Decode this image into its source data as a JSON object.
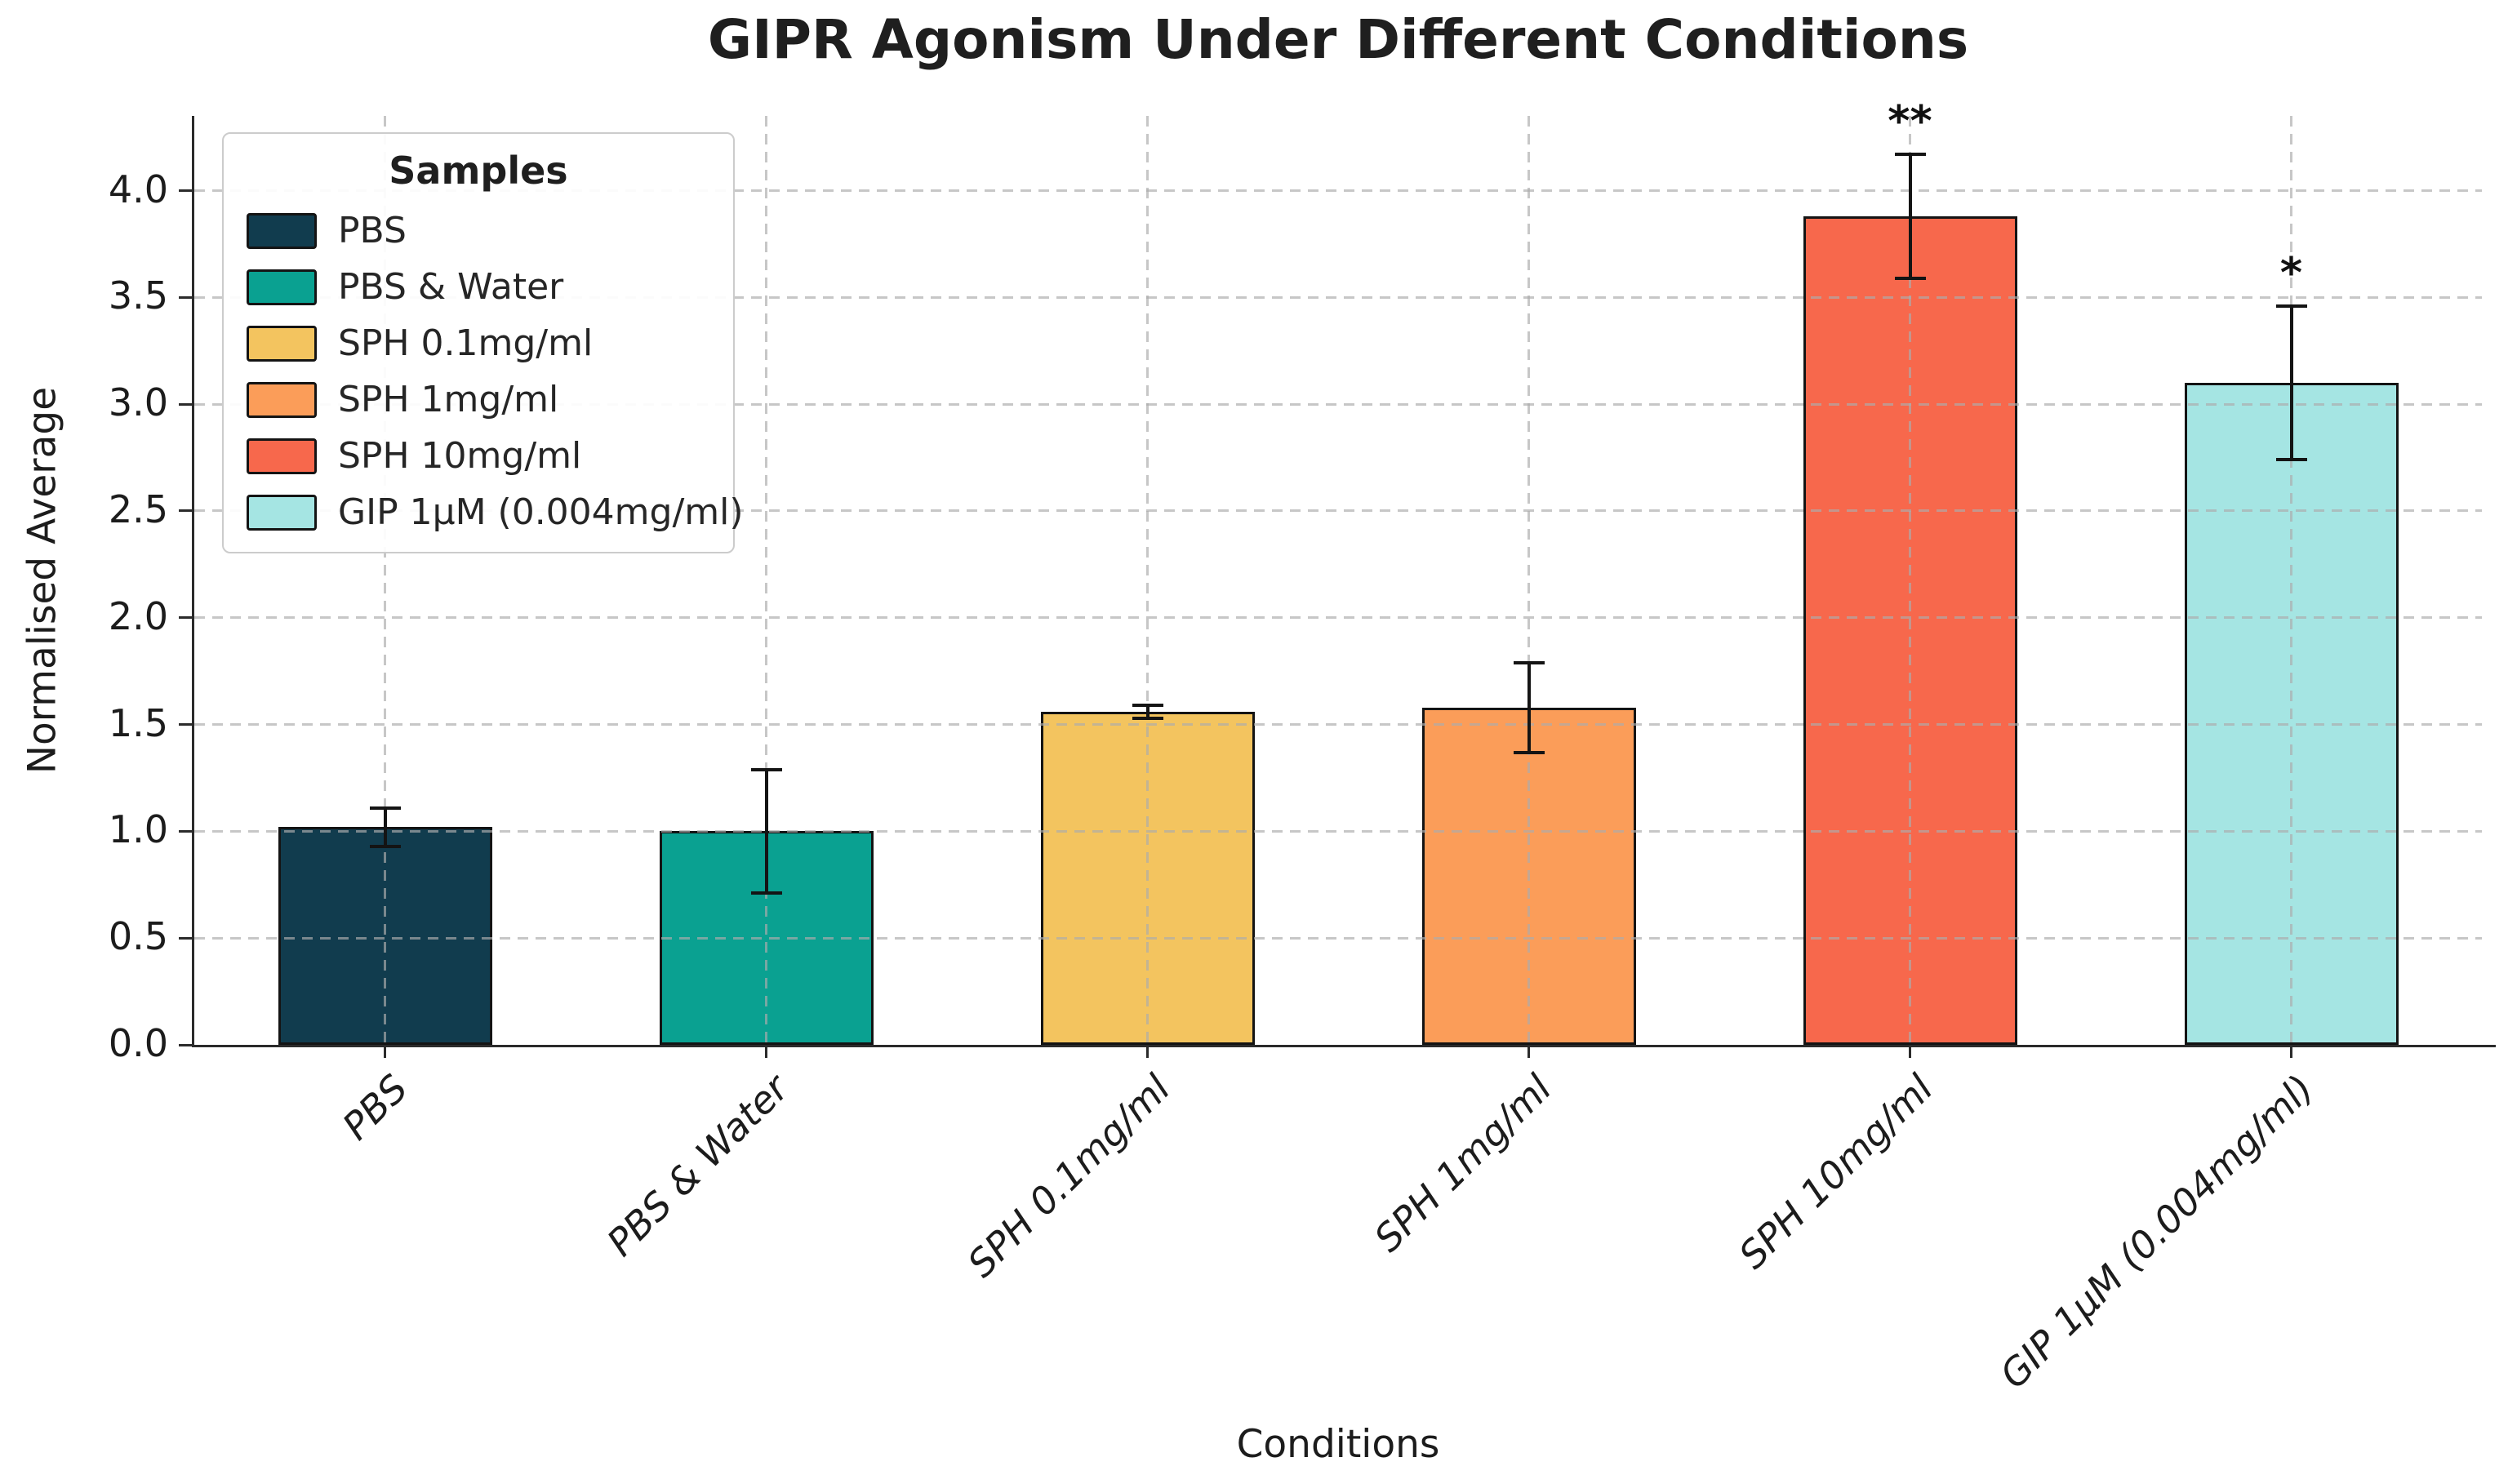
{
  "chart_data": {
    "type": "bar",
    "title": "GIPR Agonism Under Different Conditions",
    "xlabel": "Conditions",
    "ylabel": "Normalised Average",
    "ylim": [
      0,
      4.35
    ],
    "yticks": [
      0.0,
      0.5,
      1.0,
      1.5,
      2.0,
      2.5,
      3.0,
      3.5,
      4.0
    ],
    "grid": "dashed, both axes, drawn over bars",
    "categories": [
      "PBS",
      "PBS & Water",
      "SPH 0.1mg/ml",
      "SPH 1mg/ml",
      "SPH 10mg/ml",
      "GIP 1μM (0.004mg/ml)"
    ],
    "values": [
      1.02,
      1.0,
      1.56,
      1.58,
      3.88,
      3.1
    ],
    "errors": [
      0.09,
      0.29,
      0.03,
      0.21,
      0.29,
      0.36
    ],
    "annotations": [
      "",
      "",
      "",
      "",
      "**",
      "*"
    ],
    "colors": [
      "#113c4e",
      "#0aa191",
      "#f3c45f",
      "#fb9d59",
      "#f7684c",
      "#a5e5e3"
    ],
    "bar_edge_color": "#141414",
    "error_bar_color": "#141414",
    "legend": {
      "title": "Samples",
      "position": "upper-left"
    }
  }
}
